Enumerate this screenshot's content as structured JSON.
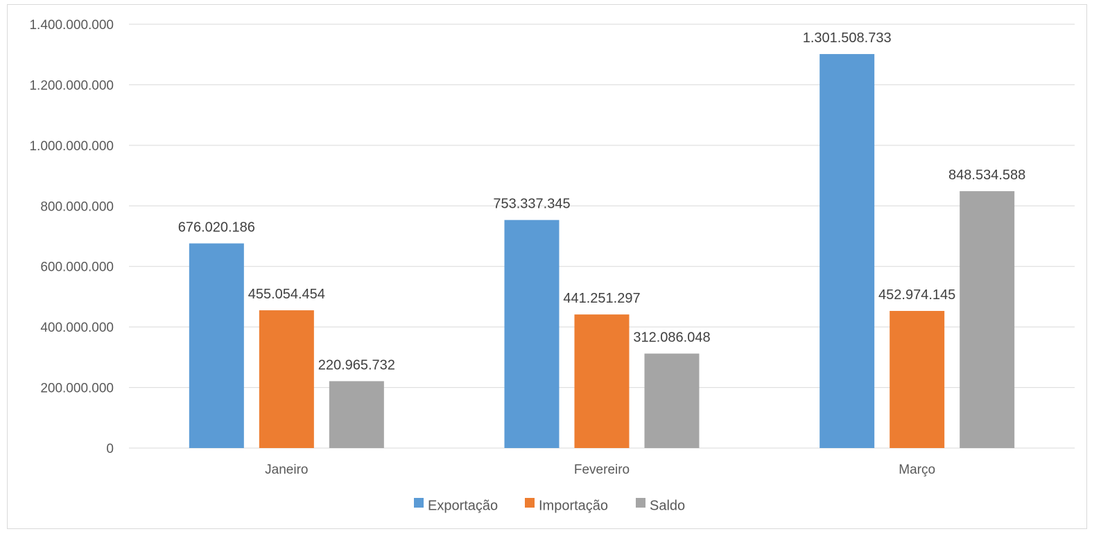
{
  "chart_data": {
    "type": "bar",
    "title": "",
    "xlabel": "",
    "ylabel": "",
    "categories": [
      "Janeiro",
      "Fevereiro",
      "Março"
    ],
    "series": [
      {
        "name": "Exportação",
        "color": "#5b9bd5",
        "values": [
          676020186,
          753337345,
          1301508733
        ],
        "labels": [
          "676.020.186",
          "753.337.345",
          "1.301.508.733"
        ]
      },
      {
        "name": "Importação",
        "color": "#ed7d31",
        "values": [
          455054454,
          441251297,
          452974145
        ],
        "labels": [
          "455.054.454",
          "441.251.297",
          "452.974.145"
        ]
      },
      {
        "name": "Saldo",
        "color": "#a5a5a5",
        "values": [
          220965732,
          312086048,
          848534588
        ],
        "labels": [
          "220.965.732",
          "312.086.048",
          "848.534.588"
        ]
      }
    ],
    "ylim": [
      0,
      1400000000
    ],
    "yticks": [
      0,
      200000000,
      400000000,
      600000000,
      800000000,
      1000000000,
      1200000000,
      1400000000
    ],
    "ytick_labels": [
      "0",
      "200.000.000",
      "400.000.000",
      "600.000.000",
      "800.000.000",
      "1.000.000.000",
      "1.200.000.000",
      "1.400.000.000"
    ],
    "grid": true,
    "gridline_color": "#d9d9d9",
    "legend_position": "bottom"
  }
}
